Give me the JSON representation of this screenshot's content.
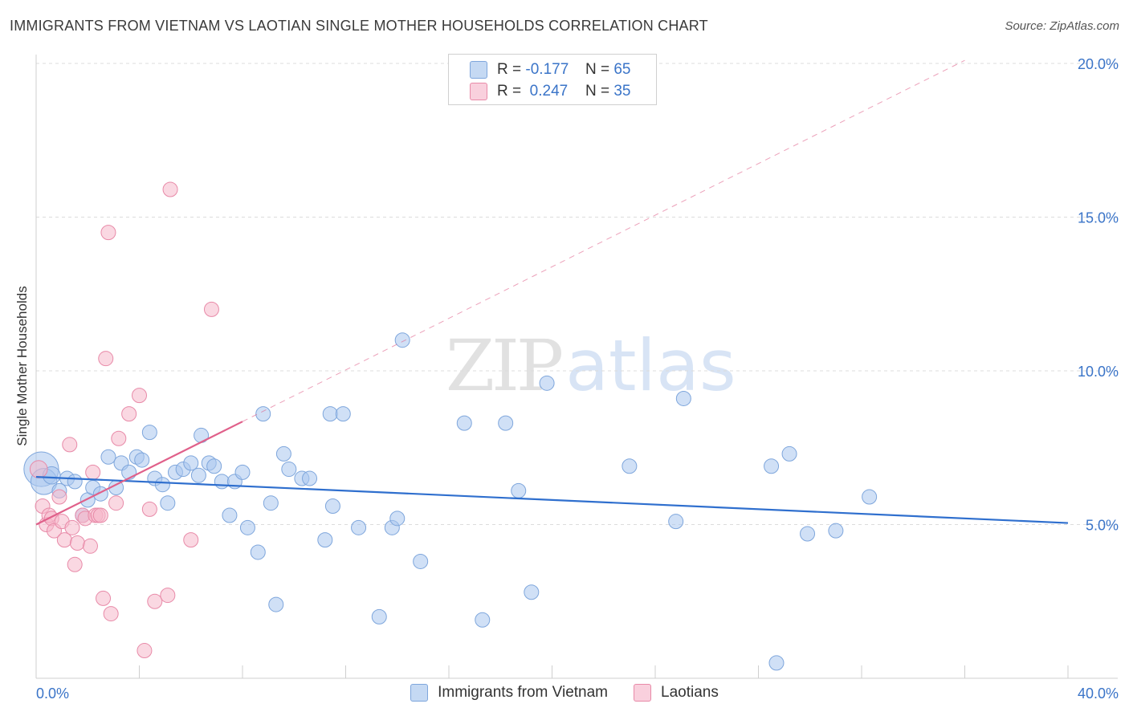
{
  "header": {
    "title": "IMMIGRANTS FROM VIETNAM VS LAOTIAN SINGLE MOTHER HOUSEHOLDS CORRELATION CHART",
    "source": "Source: ZipAtlas.com"
  },
  "watermark": {
    "zip": "ZIP",
    "atlas": "atlas"
  },
  "legend": {
    "rows": [
      {
        "r_label": "R =",
        "r_value": "-0.177",
        "n_label": "N =",
        "n_value": "65"
      },
      {
        "r_label": "R =",
        "r_value": " 0.247",
        "n_label": "N =",
        "n_value": "35"
      }
    ]
  },
  "colors": {
    "blue_fill": "#a9c7ee",
    "blue_stroke": "#7ea6dc",
    "blue_line": "#2f6fce",
    "pink_fill": "#f5b8cb",
    "pink_stroke": "#e88aa8",
    "pink_line": "#e0608a",
    "grid": "#dcdcdc",
    "tick_label": "#3a74c8"
  },
  "chart_data": {
    "type": "scatter",
    "title": "IMMIGRANTS FROM VIETNAM VS LAOTIAN SINGLE MOTHER HOUSEHOLDS CORRELATION CHART",
    "xlabel": "",
    "ylabel": "Single Mother Households",
    "xlim": [
      0,
      40
    ],
    "ylim": [
      0,
      20.5
    ],
    "x_tick_labels": [
      "0.0%",
      "40.0%"
    ],
    "y_ticks": [
      5,
      10,
      15,
      20
    ],
    "y_tick_labels": [
      "5.0%",
      "10.0%",
      "15.0%",
      "20.0%"
    ],
    "grid": true,
    "legend_position": "top-center",
    "series": [
      {
        "name": "Immigrants from Vietnam",
        "color": "#a9c7ee",
        "r": -0.177,
        "n": 65,
        "trend": {
          "x": [
            0,
            40
          ],
          "y": [
            6.55,
            5.05
          ]
        },
        "points": [
          [
            0.2,
            6.8,
            2.4
          ],
          [
            0.3,
            6.4,
            1.8
          ],
          [
            0.6,
            6.6,
            1.2
          ],
          [
            0.9,
            6.1,
            1
          ],
          [
            1.2,
            6.5,
            1
          ],
          [
            1.5,
            6.4,
            1
          ],
          [
            1.8,
            5.3,
            1
          ],
          [
            2.0,
            5.8,
            1
          ],
          [
            2.2,
            6.2,
            1
          ],
          [
            2.5,
            6.0,
            1
          ],
          [
            2.8,
            7.2,
            1
          ],
          [
            3.1,
            6.2,
            1
          ],
          [
            3.3,
            7.0,
            1
          ],
          [
            3.6,
            6.7,
            1
          ],
          [
            3.9,
            7.2,
            1
          ],
          [
            4.1,
            7.1,
            1
          ],
          [
            4.4,
            8.0,
            1
          ],
          [
            4.6,
            6.5,
            1
          ],
          [
            4.9,
            6.3,
            1
          ],
          [
            5.1,
            5.7,
            1
          ],
          [
            5.4,
            6.7,
            1
          ],
          [
            5.7,
            6.8,
            1
          ],
          [
            6.0,
            7.0,
            1
          ],
          [
            6.3,
            6.6,
            1
          ],
          [
            6.4,
            7.9,
            1
          ],
          [
            6.7,
            7.0,
            1
          ],
          [
            6.9,
            6.9,
            1
          ],
          [
            7.2,
            6.4,
            1
          ],
          [
            7.5,
            5.3,
            1
          ],
          [
            7.7,
            6.4,
            1
          ],
          [
            8.0,
            6.7,
            1
          ],
          [
            8.2,
            4.9,
            1
          ],
          [
            8.6,
            4.1,
            1
          ],
          [
            8.8,
            8.6,
            1
          ],
          [
            9.1,
            5.7,
            1
          ],
          [
            9.3,
            2.4,
            1
          ],
          [
            9.6,
            7.3,
            1
          ],
          [
            9.8,
            6.8,
            1
          ],
          [
            10.3,
            6.5,
            1
          ],
          [
            10.6,
            6.5,
            1
          ],
          [
            11.2,
            4.5,
            1
          ],
          [
            11.4,
            8.6,
            1
          ],
          [
            11.5,
            5.6,
            1
          ],
          [
            11.9,
            8.6,
            1
          ],
          [
            12.5,
            4.9,
            1
          ],
          [
            13.3,
            2.0,
            1
          ],
          [
            13.8,
            4.9,
            1
          ],
          [
            14.0,
            5.2,
            1
          ],
          [
            14.2,
            11.0,
            1
          ],
          [
            14.9,
            3.8,
            1
          ],
          [
            16.6,
            8.3,
            1
          ],
          [
            17.3,
            1.9,
            1
          ],
          [
            18.2,
            8.3,
            1
          ],
          [
            18.7,
            6.1,
            1
          ],
          [
            19.2,
            2.8,
            1
          ],
          [
            19.8,
            9.6,
            1
          ],
          [
            23.0,
            6.9,
            1
          ],
          [
            24.8,
            5.1,
            1
          ],
          [
            25.1,
            9.1,
            1
          ],
          [
            28.5,
            6.9,
            1
          ],
          [
            28.7,
            0.5,
            1
          ],
          [
            29.2,
            7.3,
            1
          ],
          [
            29.9,
            4.7,
            1
          ],
          [
            31.0,
            4.8,
            1
          ],
          [
            32.3,
            5.9,
            1
          ]
        ]
      },
      {
        "name": "Laotians",
        "color": "#f5b8cb",
        "r": 0.247,
        "n": 35,
        "trend": {
          "x": [
            0,
            8.0
          ],
          "y": [
            5.0,
            8.35
          ]
        },
        "trend_extension": {
          "x": [
            8.0,
            36.0
          ],
          "y": [
            8.35,
            20.1
          ]
        },
        "points": [
          [
            0.1,
            6.8,
            1.2
          ],
          [
            0.25,
            5.6,
            1
          ],
          [
            0.4,
            5.0,
            1
          ],
          [
            0.5,
            5.3,
            1
          ],
          [
            0.6,
            5.2,
            1
          ],
          [
            0.7,
            4.8,
            1
          ],
          [
            0.9,
            5.9,
            1
          ],
          [
            1.0,
            5.1,
            1
          ],
          [
            1.1,
            4.5,
            1
          ],
          [
            1.3,
            7.6,
            1
          ],
          [
            1.4,
            4.9,
            1
          ],
          [
            1.5,
            3.7,
            1
          ],
          [
            1.6,
            4.4,
            1
          ],
          [
            1.8,
            5.3,
            1
          ],
          [
            1.9,
            5.2,
            1
          ],
          [
            2.1,
            4.3,
            1
          ],
          [
            2.2,
            6.7,
            1
          ],
          [
            2.3,
            5.3,
            1
          ],
          [
            2.4,
            5.3,
            1
          ],
          [
            2.5,
            5.3,
            1
          ],
          [
            2.6,
            2.6,
            1
          ],
          [
            2.7,
            10.4,
            1
          ],
          [
            2.8,
            14.5,
            1
          ],
          [
            2.9,
            2.1,
            1
          ],
          [
            3.1,
            5.7,
            1
          ],
          [
            3.2,
            7.8,
            1
          ],
          [
            3.6,
            8.6,
            1
          ],
          [
            4.0,
            9.2,
            1
          ],
          [
            4.2,
            0.9,
            1
          ],
          [
            4.4,
            5.5,
            1
          ],
          [
            4.6,
            2.5,
            1
          ],
          [
            5.1,
            2.7,
            1
          ],
          [
            5.2,
            15.9,
            1
          ],
          [
            6.0,
            4.5,
            1
          ],
          [
            6.8,
            12.0,
            1
          ]
        ]
      }
    ]
  },
  "bottom_legend": {
    "items": [
      {
        "label": "Immigrants from Vietnam"
      },
      {
        "label": "Laotians"
      }
    ]
  }
}
